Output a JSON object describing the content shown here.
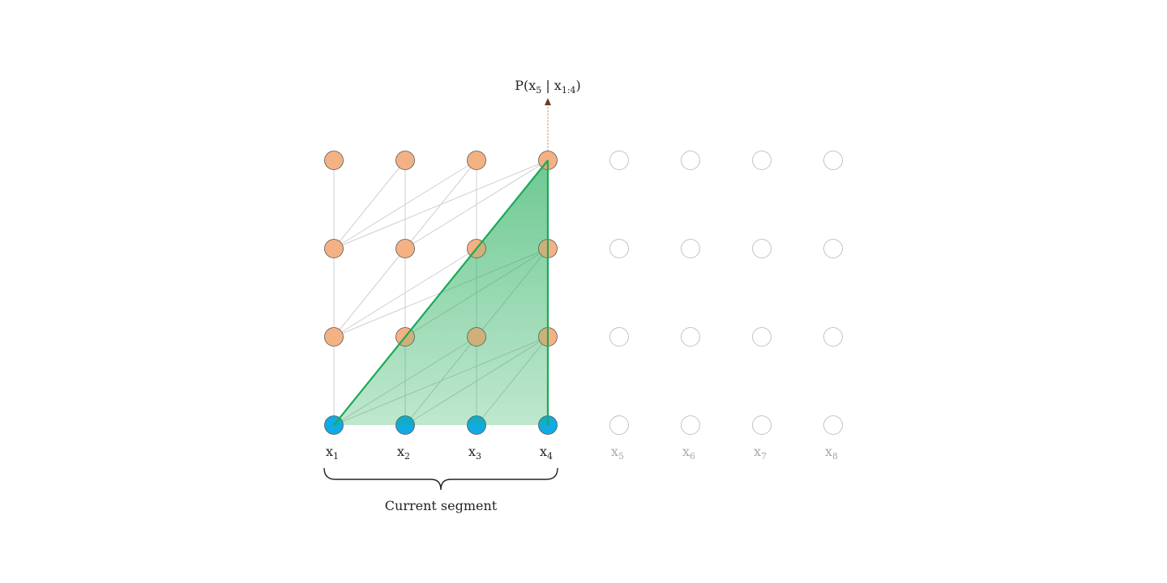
{
  "probability": {
    "prefix": "P(x",
    "target_sub": "5",
    "bar": " | x",
    "context_sub": "1:4",
    "suffix": ")"
  },
  "tokens": [
    {
      "base": "x",
      "sub": "1",
      "active": true
    },
    {
      "base": "x",
      "sub": "2",
      "active": true
    },
    {
      "base": "x",
      "sub": "3",
      "active": true
    },
    {
      "base": "x",
      "sub": "4",
      "active": true
    },
    {
      "base": "x",
      "sub": "5",
      "active": false
    },
    {
      "base": "x",
      "sub": "6",
      "active": false
    },
    {
      "base": "x",
      "sub": "7",
      "active": false
    },
    {
      "base": "x",
      "sub": "8",
      "active": false
    }
  ],
  "layers": 4,
  "segment_label": "Current segment",
  "colors": {
    "input_node": "#10abe4",
    "hidden_node": "#f4b183",
    "inactive_node": "#ffffff",
    "inactive_stroke": "#b5b5b5",
    "receptive_field": "#1aaa55",
    "edge": "#cfcfcf",
    "arrow": "#6b3a2a"
  }
}
